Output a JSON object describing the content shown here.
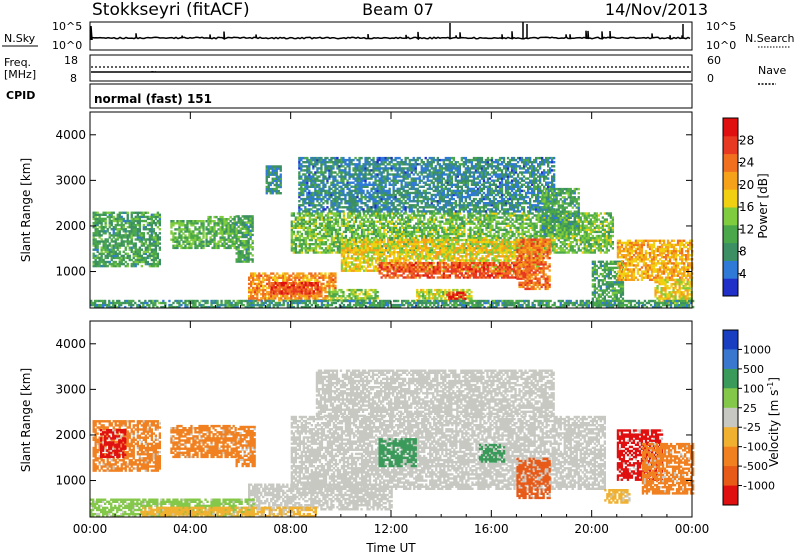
{
  "header": {
    "station": "Stokkseyri (fitACF)",
    "beam": "Beam 07",
    "date": "14/Nov/2013"
  },
  "status_panels": {
    "nsky": {
      "label": "N.Sky",
      "left_ticks": [
        "10^5",
        "10^0"
      ],
      "right_ticks": [
        "10^5",
        "10^0"
      ],
      "right_label": "N.Search"
    },
    "freq": {
      "label_line1": "Freq.",
      "label_line2": "[MHz]",
      "left_ticks": [
        "18",
        "8"
      ],
      "right_ticks": [
        "60",
        "0"
      ],
      "right_label": "Nave"
    },
    "cpid": {
      "label": "CPID",
      "value": "normal (fast) 151"
    }
  },
  "time_axis": {
    "ticks": [
      "00:00",
      "04:00",
      "08:00",
      "12:00",
      "16:00",
      "20:00",
      "00:00"
    ],
    "label": "Time UT"
  },
  "colors": {
    "power": [
      "#2030c8",
      "#2e7ad6",
      "#3b8f62",
      "#4aa84a",
      "#7fcc3e",
      "#f0d010",
      "#f5a21a",
      "#f07020",
      "#e83a22",
      "#e01010"
    ],
    "velocity": {
      "dark_blue": "#1a3ec0",
      "blue": "#3a78d0",
      "green": "#3a9a5a",
      "light_green": "#84c84a",
      "grey": "#c8c8c2",
      "light_orange": "#f0b030",
      "orange": "#f08020",
      "dark_orange": "#e85a18",
      "red": "#e01010"
    }
  },
  "chart_data": [
    {
      "type": "heatmap",
      "panel": "power",
      "xlabel": "Time UT",
      "ylabel": "Slant Range [km]",
      "xlim": [
        0,
        24
      ],
      "ylim": [
        200,
        4500
      ],
      "y_ticks": [
        1000,
        2000,
        3000,
        4000
      ],
      "colorbar": {
        "label": "Power [dB]",
        "ticks": [
          4,
          8,
          12,
          16,
          20,
          24,
          28
        ],
        "range": [
          0,
          32
        ]
      },
      "regions": [
        {
          "t0": 0.1,
          "t1": 2.8,
          "r0": 1100,
          "r1": 2300,
          "level": 10
        },
        {
          "t0": 3.2,
          "t1": 4.5,
          "r0": 1500,
          "r1": 2100,
          "level": 12
        },
        {
          "t0": 4.6,
          "t1": 5.8,
          "r0": 1500,
          "r1": 2200,
          "level": 12
        },
        {
          "t0": 5.8,
          "t1": 6.5,
          "r0": 1200,
          "r1": 2200,
          "level": 10
        },
        {
          "t0": 7.0,
          "t1": 7.6,
          "r0": 2700,
          "r1": 3300,
          "level": 8
        },
        {
          "t0": 8.0,
          "t1": 20.8,
          "r0": 1400,
          "r1": 2300,
          "level": 13
        },
        {
          "t0": 8.3,
          "t1": 18.5,
          "r0": 2300,
          "r1": 3500,
          "level": 7
        },
        {
          "t0": 10.0,
          "t1": 18.0,
          "r0": 1000,
          "r1": 1700,
          "level": 18
        },
        {
          "t0": 11.5,
          "t1": 17.5,
          "r0": 850,
          "r1": 1200,
          "level": 26
        },
        {
          "t0": 17.0,
          "t1": 18.3,
          "r0": 600,
          "r1": 1700,
          "level": 24
        },
        {
          "t0": 18.0,
          "t1": 19.5,
          "r0": 1800,
          "r1": 2800,
          "level": 10
        },
        {
          "t0": 6.3,
          "t1": 9.8,
          "r0": 350,
          "r1": 950,
          "level": 22
        },
        {
          "t0": 7.2,
          "t1": 9.2,
          "r0": 500,
          "r1": 750,
          "level": 27
        },
        {
          "t0": 9.5,
          "t1": 11.5,
          "r0": 350,
          "r1": 600,
          "level": 14
        },
        {
          "t0": 13.0,
          "t1": 15.2,
          "r0": 350,
          "r1": 600,
          "level": 16
        },
        {
          "t0": 14.2,
          "t1": 15.0,
          "r0": 380,
          "r1": 550,
          "level": 29
        },
        {
          "t0": 20.0,
          "t1": 21.2,
          "r0": 250,
          "r1": 1200,
          "level": 10
        },
        {
          "t0": 21.0,
          "t1": 24.0,
          "r0": 800,
          "r1": 1700,
          "level": 20
        },
        {
          "t0": 22.5,
          "t1": 24.0,
          "r0": 300,
          "r1": 800,
          "level": 18
        },
        {
          "t0": 0.0,
          "t1": 24.0,
          "r0": 200,
          "r1": 360,
          "level": 9
        }
      ]
    },
    {
      "type": "heatmap",
      "panel": "velocity",
      "xlabel": "Time UT",
      "ylabel": "Slant Range [km]",
      "xlim": [
        0,
        24
      ],
      "ylim": [
        200,
        4500
      ],
      "y_ticks": [
        1000,
        2000,
        3000,
        4000
      ],
      "colorbar": {
        "label": "Velocity [m s^-1]",
        "ticks": [
          "1000",
          "500",
          "100",
          "25",
          "-25",
          "-100",
          "-500",
          "-1000"
        ]
      },
      "regions": [
        {
          "t0": 0.1,
          "t1": 2.8,
          "r0": 1200,
          "r1": 2300,
          "color": "orange"
        },
        {
          "t0": 0.4,
          "t1": 1.4,
          "r0": 1500,
          "r1": 2100,
          "color": "red"
        },
        {
          "t0": 3.2,
          "t1": 5.8,
          "r0": 1500,
          "r1": 2200,
          "color": "orange"
        },
        {
          "t0": 5.8,
          "t1": 6.6,
          "r0": 1300,
          "r1": 2200,
          "color": "orange"
        },
        {
          "t0": 8.0,
          "t1": 20.5,
          "r0": 800,
          "r1": 2400,
          "color": "grey"
        },
        {
          "t0": 9.0,
          "t1": 18.5,
          "r0": 2400,
          "r1": 3400,
          "color": "grey"
        },
        {
          "t0": 11.5,
          "t1": 13.0,
          "r0": 1300,
          "r1": 1900,
          "color": "green"
        },
        {
          "t0": 15.5,
          "t1": 16.5,
          "r0": 1400,
          "r1": 1800,
          "color": "green"
        },
        {
          "t0": 17.0,
          "t1": 18.3,
          "r0": 600,
          "r1": 1500,
          "color": "dark_orange"
        },
        {
          "t0": 20.5,
          "t1": 21.5,
          "r0": 500,
          "r1": 800,
          "color": "light_orange"
        },
        {
          "t0": 21.0,
          "t1": 22.8,
          "r0": 1000,
          "r1": 2100,
          "color": "red"
        },
        {
          "t0": 22.0,
          "t1": 24.0,
          "r0": 700,
          "r1": 1800,
          "color": "orange"
        },
        {
          "t0": 6.3,
          "t1": 12.0,
          "r0": 350,
          "r1": 900,
          "color": "grey"
        },
        {
          "t0": 0.0,
          "t1": 6.5,
          "r0": 200,
          "r1": 600,
          "color": "light_green"
        },
        {
          "t0": 2.0,
          "t1": 9.0,
          "r0": 200,
          "r1": 400,
          "color": "light_orange"
        }
      ]
    }
  ]
}
